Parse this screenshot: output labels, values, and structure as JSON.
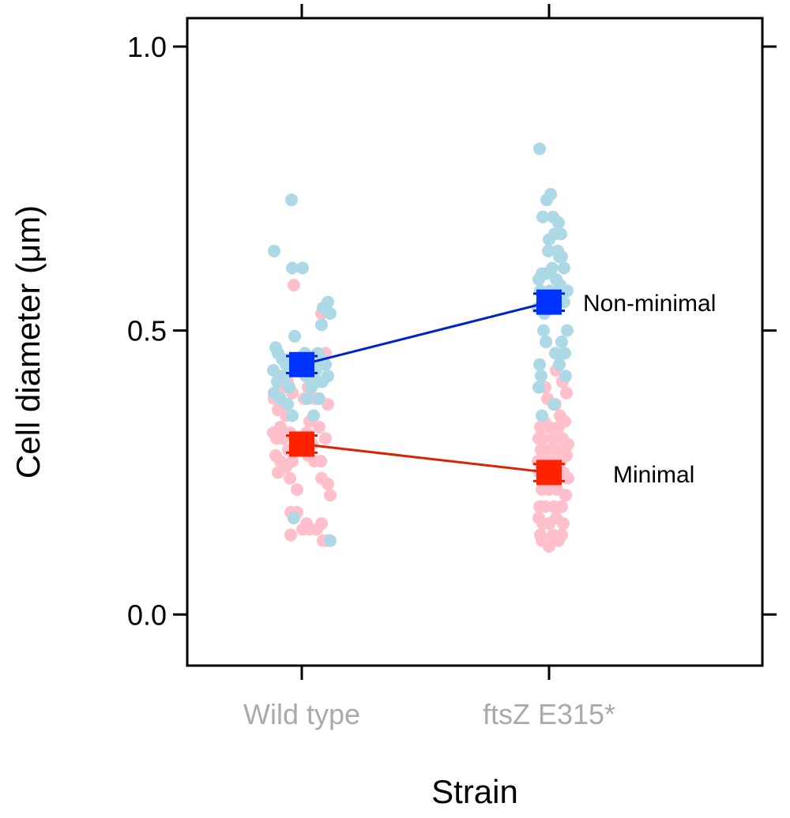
{
  "chart_data": {
    "type": "scatter",
    "xlabel": "Strain",
    "ylabel": "Cell diameter (μm)",
    "categories": [
      "Wild type",
      "ftsZ E315*"
    ],
    "ylim": [
      -0.09,
      1.05
    ],
    "yticks": [
      "0.0",
      "0.5",
      "1.0"
    ],
    "ytick_values": [
      0.0,
      0.5,
      1.0
    ],
    "grid": false,
    "colors": {
      "nonminimal_points": "#add8e6",
      "minimal_points": "#ffc0cb",
      "nonminimal_mean": "#0033ff",
      "minimal_mean": "#ff2200",
      "nonminimal_line": "#0022cc",
      "minimal_line": "#dd2200",
      "category_text": "#aaaaaa"
    },
    "series": [
      {
        "name": "Non-minimal",
        "means": [
          0.44,
          0.55
        ],
        "errors": [
          0.015,
          0.015
        ],
        "points": [
          [
            [
              -0.35,
              0.64
            ],
            [
              -0.13,
              0.73
            ],
            [
              -0.12,
              0.61
            ],
            [
              0.01,
              0.61
            ],
            [
              -0.33,
              0.47
            ],
            [
              -0.3,
              0.46
            ],
            [
              -0.25,
              0.45
            ],
            [
              -0.2,
              0.44
            ],
            [
              -0.15,
              0.45
            ],
            [
              -0.1,
              0.44
            ],
            [
              -0.06,
              0.45
            ],
            [
              0.04,
              0.46
            ],
            [
              0.1,
              0.44
            ],
            [
              0.15,
              0.45
            ],
            [
              0.2,
              0.46
            ],
            [
              0.25,
              0.45
            ],
            [
              0.3,
              0.44
            ],
            [
              -0.36,
              0.43
            ],
            [
              -0.31,
              0.41
            ],
            [
              -0.22,
              0.42
            ],
            [
              -0.16,
              0.4
            ],
            [
              0.05,
              0.42
            ],
            [
              0.12,
              0.4
            ],
            [
              0.18,
              0.43
            ],
            [
              0.26,
              0.41
            ],
            [
              0.33,
              0.42
            ],
            [
              -0.35,
              0.39
            ],
            [
              -0.27,
              0.38
            ],
            [
              -0.18,
              0.37
            ],
            [
              0.07,
              0.38
            ],
            [
              0.22,
              0.38
            ],
            [
              -0.12,
              0.35
            ],
            [
              0.15,
              0.35
            ],
            [
              -0.09,
              0.49
            ],
            [
              0.25,
              0.51
            ],
            [
              0.27,
              0.54
            ],
            [
              0.33,
              0.55
            ],
            [
              0.36,
              0.53
            ],
            [
              0.2,
              0.41
            ],
            [
              -0.1,
              0.17
            ],
            [
              0.36,
              0.13
            ]
          ],
          [
            [
              -0.12,
              0.82
            ],
            [
              -0.03,
              0.73
            ],
            [
              0.02,
              0.74
            ],
            [
              0.05,
              0.7
            ],
            [
              0.12,
              0.69
            ],
            [
              0.15,
              0.67
            ],
            [
              0.13,
              0.63
            ],
            [
              0.07,
              0.67
            ],
            [
              0.0,
              0.66
            ],
            [
              -0.08,
              0.7
            ],
            [
              -0.04,
              0.6
            ],
            [
              -0.09,
              0.6
            ],
            [
              0.04,
              0.61
            ],
            [
              0.09,
              0.59
            ],
            [
              0.16,
              0.63
            ],
            [
              0.19,
              0.61
            ],
            [
              0.23,
              0.57
            ],
            [
              0.14,
              0.58
            ],
            [
              -0.13,
              0.59
            ],
            [
              -0.11,
              0.57
            ],
            [
              0.01,
              0.57
            ],
            [
              0.06,
              0.56
            ],
            [
              -0.14,
              0.54
            ],
            [
              -0.06,
              0.53
            ],
            [
              0.19,
              0.55
            ],
            [
              -0.07,
              0.5
            ],
            [
              -0.04,
              0.48
            ],
            [
              0.16,
              0.48
            ],
            [
              0.23,
              0.5
            ],
            [
              0.08,
              0.46
            ],
            [
              0.13,
              0.44
            ],
            [
              0.18,
              0.46
            ],
            [
              -0.12,
              0.44
            ],
            [
              -0.1,
              0.42
            ],
            [
              0.21,
              0.42
            ],
            [
              -0.13,
              0.4
            ],
            [
              0.06,
              0.37
            ],
            [
              -0.09,
              0.35
            ],
            [
              0.2,
              0.46
            ],
            [
              0.11,
              0.64
            ],
            [
              -0.01,
              0.64
            ]
          ]
        ]
      },
      {
        "name": "Minimal",
        "means": [
          0.3,
          0.25
        ],
        "errors": [
          0.015,
          0.015
        ],
        "points": [
          [
            [
              -0.1,
              0.58
            ],
            [
              0.25,
              0.53
            ],
            [
              -0.28,
              0.42
            ],
            [
              -0.23,
              0.4
            ],
            [
              -0.18,
              0.41
            ],
            [
              -0.12,
              0.39
            ],
            [
              0.08,
              0.4
            ],
            [
              0.14,
              0.42
            ],
            [
              0.23,
              0.44
            ],
            [
              0.3,
              0.46
            ],
            [
              -0.35,
              0.38
            ],
            [
              -0.3,
              0.36
            ],
            [
              -0.2,
              0.35
            ],
            [
              0.03,
              0.38
            ],
            [
              0.17,
              0.38
            ],
            [
              0.33,
              0.37
            ],
            [
              -0.27,
              0.33
            ],
            [
              -0.15,
              0.32
            ],
            [
              0.1,
              0.34
            ],
            [
              0.22,
              0.33
            ],
            [
              -0.36,
              0.32
            ],
            [
              -0.32,
              0.31
            ],
            [
              -0.24,
              0.31
            ],
            [
              -0.17,
              0.29
            ],
            [
              -0.08,
              0.31
            ],
            [
              0.06,
              0.32
            ],
            [
              0.13,
              0.3
            ],
            [
              0.3,
              0.31
            ],
            [
              -0.33,
              0.28
            ],
            [
              -0.27,
              0.27
            ],
            [
              -0.2,
              0.26
            ],
            [
              -0.12,
              0.27
            ],
            [
              0.08,
              0.28
            ],
            [
              0.16,
              0.27
            ],
            [
              0.24,
              0.27
            ],
            [
              -0.3,
              0.25
            ],
            [
              -0.15,
              0.24
            ],
            [
              0.25,
              0.24
            ],
            [
              0.33,
              0.23
            ],
            [
              -0.06,
              0.22
            ],
            [
              0.36,
              0.21
            ],
            [
              -0.14,
              0.18
            ],
            [
              -0.1,
              0.17
            ],
            [
              -0.06,
              0.18
            ],
            [
              0.06,
              0.16
            ],
            [
              0.25,
              0.16
            ],
            [
              0.01,
              0.15
            ],
            [
              0.1,
              0.15
            ],
            [
              0.19,
              0.15
            ],
            [
              -0.14,
              0.14
            ],
            [
              0.27,
              0.13
            ],
            [
              0.32,
              0.13
            ]
          ],
          [
            [
              0.09,
              0.43
            ],
            [
              0.17,
              0.41
            ],
            [
              -0.05,
              0.4
            ],
            [
              0.22,
              0.39
            ],
            [
              -0.02,
              0.38
            ],
            [
              0.08,
              0.37
            ],
            [
              0.14,
              0.35
            ],
            [
              0.2,
              0.34
            ],
            [
              -0.11,
              0.33
            ],
            [
              -0.06,
              0.34
            ],
            [
              0.0,
              0.33
            ],
            [
              0.12,
              0.33
            ],
            [
              -0.13,
              0.31
            ],
            [
              -0.08,
              0.31
            ],
            [
              0.05,
              0.31
            ],
            [
              0.17,
              0.31
            ],
            [
              0.24,
              0.3
            ],
            [
              -0.1,
              0.29
            ],
            [
              0.0,
              0.29
            ],
            [
              0.11,
              0.29
            ],
            [
              0.2,
              0.29
            ],
            [
              -0.14,
              0.27
            ],
            [
              -0.07,
              0.27
            ],
            [
              0.04,
              0.27
            ],
            [
              0.15,
              0.27
            ],
            [
              0.22,
              0.28
            ],
            [
              -0.12,
              0.25
            ],
            [
              -0.03,
              0.25
            ],
            [
              0.07,
              0.25
            ],
            [
              0.18,
              0.25
            ],
            [
              0.24,
              0.24
            ],
            [
              -0.09,
              0.22
            ],
            [
              0.0,
              0.22
            ],
            [
              0.1,
              0.22
            ],
            [
              0.21,
              0.21
            ],
            [
              -0.12,
              0.19
            ],
            [
              -0.05,
              0.19
            ],
            [
              0.06,
              0.19
            ],
            [
              0.16,
              0.19
            ],
            [
              -0.13,
              0.17
            ],
            [
              -0.08,
              0.16
            ],
            [
              0.0,
              0.16
            ],
            [
              0.09,
              0.17
            ],
            [
              0.18,
              0.16
            ],
            [
              -0.11,
              0.14
            ],
            [
              0.05,
              0.14
            ],
            [
              0.16,
              0.14
            ],
            [
              -0.09,
              0.13
            ],
            [
              0.0,
              0.12
            ],
            [
              0.12,
              0.13
            ]
          ]
        ]
      }
    ]
  }
}
